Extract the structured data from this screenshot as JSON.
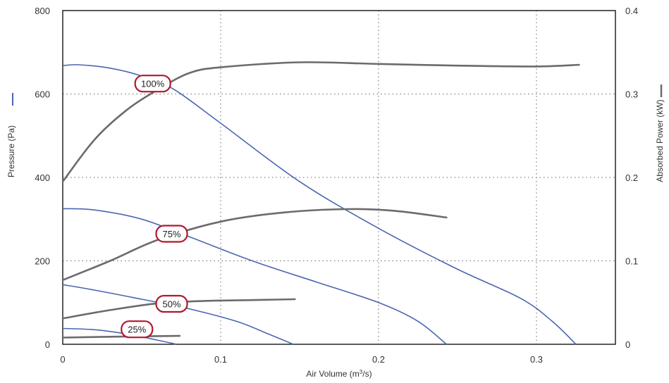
{
  "chart_data": {
    "type": "line",
    "xlabel_prefix": "Air Volume (m",
    "xlabel_sup": "3",
    "xlabel_suffix": "/s)",
    "ylabel": "Pressure (Pa)",
    "y2label": "Absorbed Power (kW)",
    "xlim": [
      0,
      0.35
    ],
    "ylim": [
      0,
      800
    ],
    "y2lim": [
      0,
      0.4
    ],
    "x_ticks": [
      0,
      0.1,
      0.2,
      0.3
    ],
    "y_ticks": [
      0,
      200,
      400,
      600,
      800
    ],
    "y2_ticks": [
      0,
      0.1,
      0.2,
      0.3,
      0.4
    ],
    "grid": "dotted",
    "colors": {
      "pressure": "#4a67b0",
      "power": "#6b6b6b",
      "label_border": "#b0182e"
    },
    "series": [
      {
        "label": "100%",
        "label_at": [
          0.057,
          625
        ],
        "pressure": [
          [
            0,
            668
          ],
          [
            0.01,
            670
          ],
          [
            0.03,
            662
          ],
          [
            0.05,
            643
          ],
          [
            0.07,
            612
          ],
          [
            0.1,
            530
          ],
          [
            0.15,
            390
          ],
          [
            0.2,
            278
          ],
          [
            0.25,
            180
          ],
          [
            0.29,
            110
          ],
          [
            0.31,
            55
          ],
          [
            0.325,
            0
          ]
        ],
        "power": [
          [
            0,
            0.195
          ],
          [
            0.02,
            0.245
          ],
          [
            0.04,
            0.28
          ],
          [
            0.06,
            0.305
          ],
          [
            0.08,
            0.325
          ],
          [
            0.1,
            0.332
          ],
          [
            0.15,
            0.338
          ],
          [
            0.2,
            0.336
          ],
          [
            0.25,
            0.334
          ],
          [
            0.3,
            0.333
          ],
          [
            0.327,
            0.335
          ]
        ]
      },
      {
        "label": "75%",
        "label_at": [
          0.069,
          265
        ],
        "pressure": [
          [
            0,
            325
          ],
          [
            0.02,
            322
          ],
          [
            0.05,
            300
          ],
          [
            0.08,
            258
          ],
          [
            0.12,
            200
          ],
          [
            0.16,
            150
          ],
          [
            0.2,
            100
          ],
          [
            0.225,
            55
          ],
          [
            0.243,
            0
          ]
        ],
        "power": [
          [
            0,
            0.077
          ],
          [
            0.03,
            0.1
          ],
          [
            0.06,
            0.125
          ],
          [
            0.1,
            0.147
          ],
          [
            0.14,
            0.158
          ],
          [
            0.18,
            0.162
          ],
          [
            0.21,
            0.16
          ],
          [
            0.243,
            0.152
          ]
        ]
      },
      {
        "label": "50%",
        "label_at": [
          0.069,
          97
        ],
        "pressure": [
          [
            0,
            143
          ],
          [
            0.02,
            130
          ],
          [
            0.05,
            108
          ],
          [
            0.08,
            85
          ],
          [
            0.11,
            55
          ],
          [
            0.13,
            25
          ],
          [
            0.146,
            0
          ]
        ],
        "power": [
          [
            0,
            0.031
          ],
          [
            0.03,
            0.041
          ],
          [
            0.06,
            0.049
          ],
          [
            0.09,
            0.052
          ],
          [
            0.12,
            0.053
          ],
          [
            0.147,
            0.054
          ]
        ]
      },
      {
        "label": "25%",
        "label_at": [
          0.047,
          36
        ],
        "pressure": [
          [
            0,
            38
          ],
          [
            0.02,
            35
          ],
          [
            0.04,
            25
          ],
          [
            0.06,
            10
          ],
          [
            0.072,
            0
          ]
        ],
        "power": [
          [
            0,
            0.008
          ],
          [
            0.03,
            0.009
          ],
          [
            0.05,
            0.0095
          ],
          [
            0.074,
            0.01
          ]
        ]
      }
    ]
  }
}
